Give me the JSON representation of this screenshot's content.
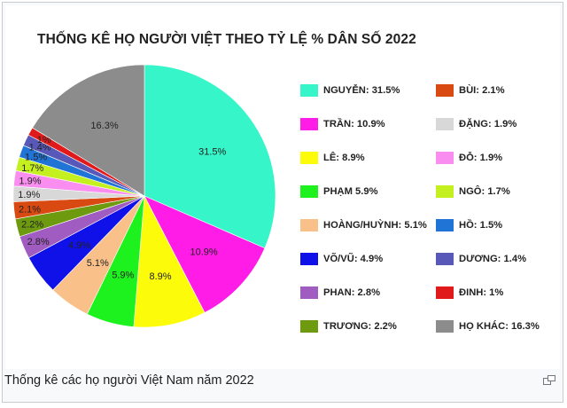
{
  "chart_data": {
    "type": "pie",
    "title": "THỐNG KÊ HỌ NGƯỜI VIỆT THEO TỶ LỆ % DÂN SỐ 2022",
    "slices": [
      {
        "legend": "NGUYỄN: 31.5%",
        "value": 31.5,
        "label": "31.5%",
        "color": "#36f5c8"
      },
      {
        "legend": "TRẦN: 10.9%",
        "value": 10.9,
        "label": "10.9%",
        "color": "#ff1ce6"
      },
      {
        "legend": "LÊ: 8.9%",
        "value": 8.9,
        "label": "8.9%",
        "color": "#fbfb0a"
      },
      {
        "legend": "PHẠM 5.9%",
        "value": 5.9,
        "label": "5.9%",
        "color": "#1ef21e"
      },
      {
        "legend": "HOÀNG/HUỲNH: 5.1%",
        "value": 5.1,
        "label": "5.1%",
        "color": "#f9c089"
      },
      {
        "legend": "VÕ/VŨ: 4.9%",
        "value": 4.9,
        "label": "4.9%",
        "color": "#1010e8"
      },
      {
        "legend": "PHAN: 2.8%",
        "value": 2.8,
        "label": "2.8%",
        "color": "#a05cc0"
      },
      {
        "legend": "TRƯƠNG: 2.2%",
        "value": 2.2,
        "label": "2.2%",
        "color": "#6e9a10"
      },
      {
        "legend": "BÙI: 2.1%",
        "value": 2.1,
        "label": "2.1%",
        "color": "#d84a12"
      },
      {
        "legend": "ĐẶNG: 1.9%",
        "value": 1.9,
        "label": "1.9%",
        "color": "#d8d8d8"
      },
      {
        "legend": "ĐỖ: 1.9%",
        "value": 1.9,
        "label": "1.9%",
        "color": "#f98ef0"
      },
      {
        "legend": "NGÔ: 1.7%",
        "value": 1.7,
        "label": "1.7%",
        "color": "#c4f020"
      },
      {
        "legend": "HỒ: 1.5%",
        "value": 1.5,
        "label": "1.5%",
        "color": "#1f74d6"
      },
      {
        "legend": "DƯƠNG: 1.4%",
        "value": 1.4,
        "label": "1.4%",
        "color": "#5858b8"
      },
      {
        "legend": "ĐINH: 1%",
        "value": 1.0,
        "label": "1%",
        "color": "#e01a1a"
      },
      {
        "legend": "HỌ KHÁC: 16.3%",
        "value": 16.3,
        "label": "16.3%",
        "color": "#8c8c8c"
      }
    ],
    "legend_placement": "right"
  },
  "caption": "Thống kê các họ người Việt Nam năm 2022",
  "icons": {
    "enlarge": "enlarge-icon"
  }
}
